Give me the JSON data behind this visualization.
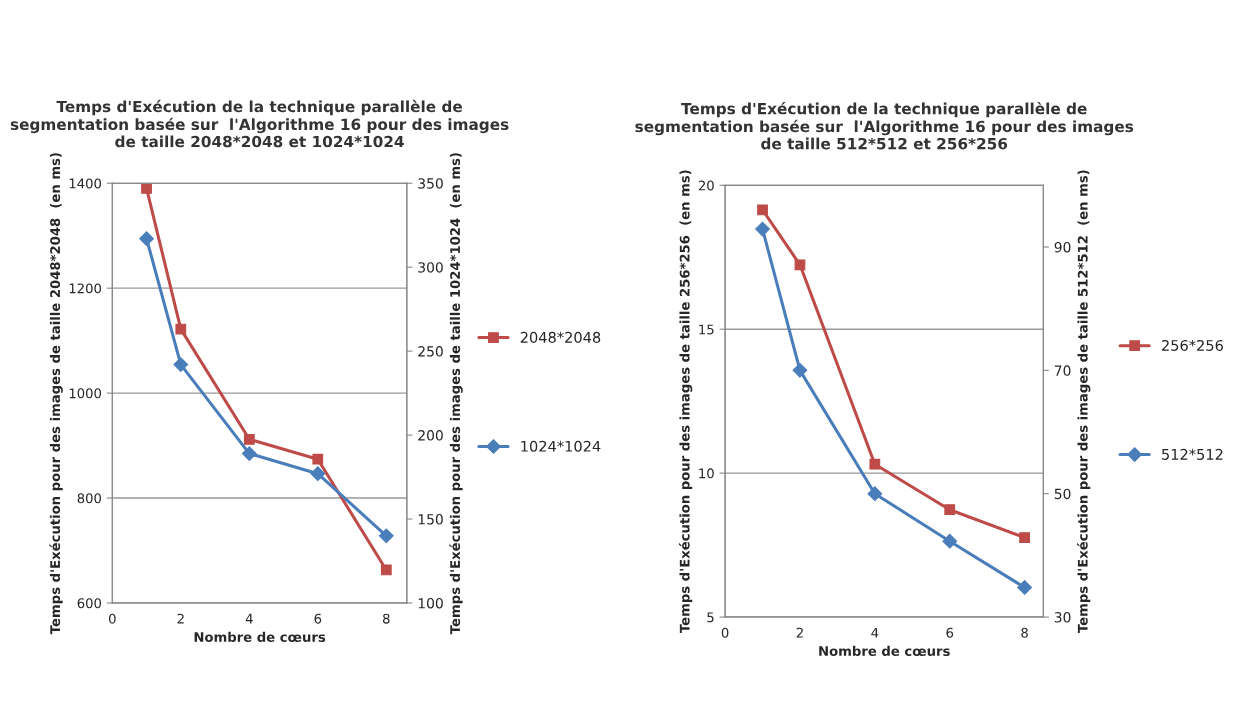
{
  "chart_data": [
    {
      "type": "line",
      "title": "Temps d'Exécution de la technique parallèle de\nsegmentation basée sur  l'Algorithme 16 pour des images\nde taille 2048*2048 et 1024*1024",
      "xlabel": "Nombre de cœurs",
      "ylabel": "Temps d'Exécution pour des images de taille 2048*2048  (en ms)",
      "y2label": "Temps d'Exécution pour des images de taille 1024*1024  (en ms)",
      "x": [
        1,
        2,
        4,
        6,
        8
      ],
      "xlim": [
        0,
        8.6
      ],
      "xticks": [
        0,
        2,
        4,
        6,
        8
      ],
      "ylim": [
        600,
        1400
      ],
      "yticks": [
        600,
        800,
        1000,
        1200,
        1400
      ],
      "y2lim": [
        100,
        350
      ],
      "y2ticks": [
        100,
        150,
        200,
        250,
        300,
        350
      ],
      "grid": "y",
      "legend": "right",
      "series": [
        {
          "name": "2048*2048",
          "color": "#be4b48",
          "marker": "square",
          "values": [
            1390,
            1122,
            912,
            874,
            663
          ]
        },
        {
          "name": "1024*1024",
          "color": "#4a7ebb",
          "marker": "diamond",
          "axis": "y2",
          "values": [
            317,
            242,
            189,
            177,
            140
          ]
        }
      ]
    },
    {
      "type": "line",
      "title": "Temps d'Exécution de la technique parallèle de\nsegmentation basée sur  l'Algorithme 16 pour des images\nde taille 512*512 et 256*256",
      "xlabel": "Nombre de cœurs",
      "ylabel": "Temps d'Exécution pour des images de taille 256*256  (en ms)",
      "y2label": "Temps d'Exécution pour des images de taille 512*512  (en ms)",
      "x": [
        1,
        2,
        4,
        6,
        8
      ],
      "xlim": [
        0,
        8.5
      ],
      "xticks": [
        0,
        2,
        4,
        6,
        8
      ],
      "ylim": [
        5,
        20
      ],
      "yticks": [
        5,
        10,
        15,
        20
      ],
      "y2lim": [
        30,
        100
      ],
      "y2ticks": [
        30,
        50,
        70,
        90
      ],
      "grid": "y",
      "legend": "right",
      "series": [
        {
          "name": "256*256",
          "color": "#be4b48",
          "marker": "square",
          "values": [
            19.15,
            17.24,
            10.31,
            8.73,
            7.76
          ]
        },
        {
          "name": "512*512",
          "color": "#4a7ebb",
          "marker": "diamond",
          "axis": "y2",
          "values": [
            92.9,
            70,
            50,
            42.3,
            34.8
          ]
        }
      ]
    }
  ]
}
